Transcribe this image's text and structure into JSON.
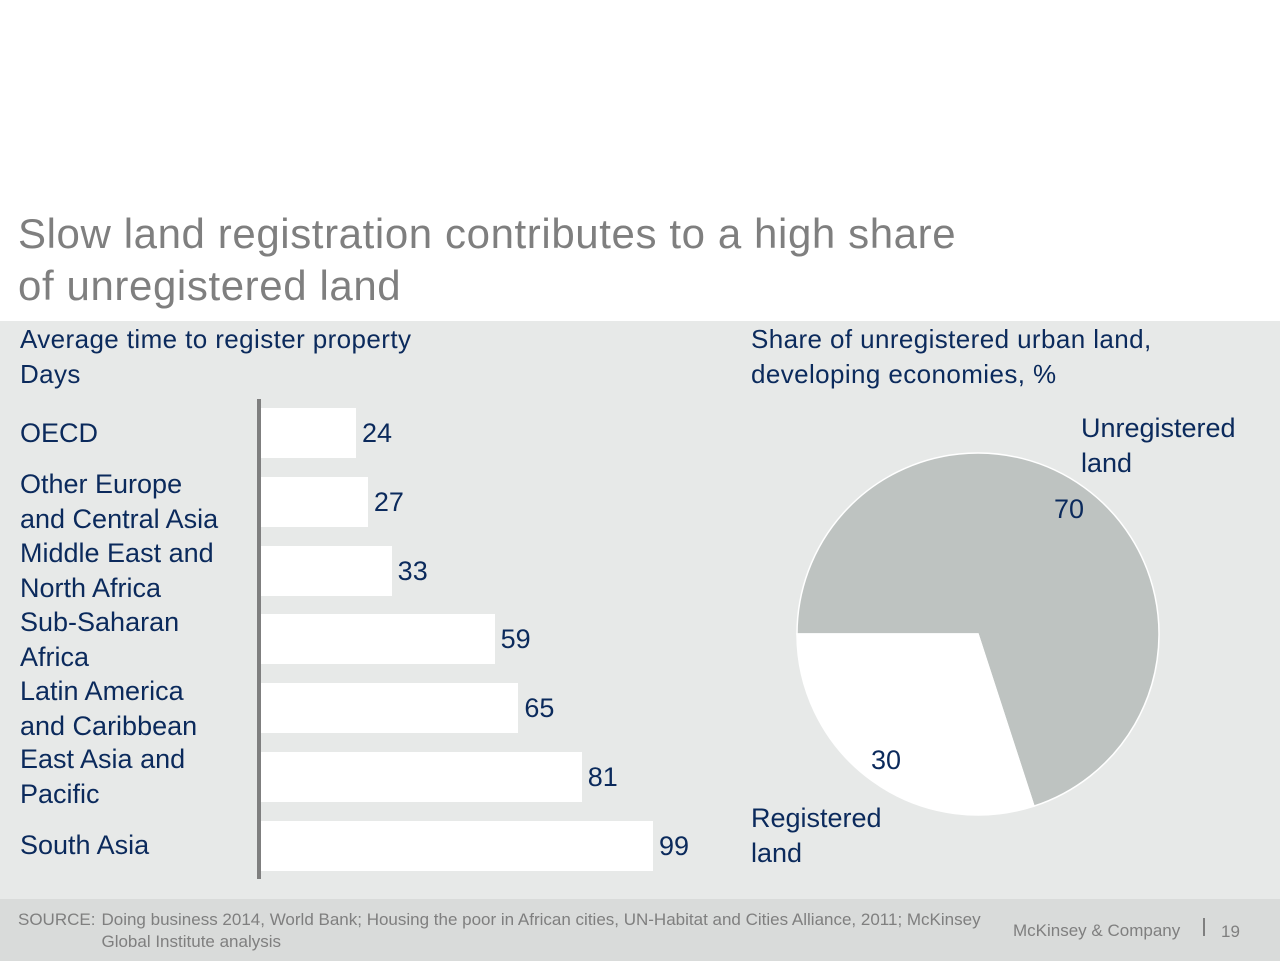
{
  "slide": {
    "title": "Slow land registration contributes to a high share\nof unregistered land"
  },
  "chart_data": [
    {
      "type": "bar",
      "orientation": "horizontal",
      "title": "Average time to register property\nDays",
      "categories": [
        "OECD",
        "Other Europe\nand Central Asia",
        "Middle East and\nNorth Africa",
        "Sub-Saharan\nAfrica",
        "Latin America\nand Caribbean",
        "East Asia and\nPacific",
        "South Asia"
      ],
      "values": [
        24,
        27,
        33,
        59,
        65,
        81,
        99
      ],
      "value_labels": [
        "24",
        "27",
        "33",
        "59",
        "65",
        "81",
        "99"
      ],
      "bar_color": "#ffffff",
      "grid": false
    },
    {
      "type": "pie",
      "title": "Share of unregistered urban land,\ndeveloping economies, %",
      "slices": [
        {
          "label": "Unregistered\nland",
          "value": 70,
          "value_label": "70",
          "color": "#bec3c1"
        },
        {
          "label": "Registered\nland",
          "value": 30,
          "value_label": "30",
          "color": "#ffffff"
        }
      ]
    }
  ],
  "footer": {
    "source_prefix": "SOURCE:",
    "source_text": "Doing business 2014, World Bank; Housing the poor in African cities, UN-Habitat and Cities Alliance, 2011; McKinsey Global Institute analysis",
    "brand": "McKinsey & Company",
    "page_number": "19"
  }
}
